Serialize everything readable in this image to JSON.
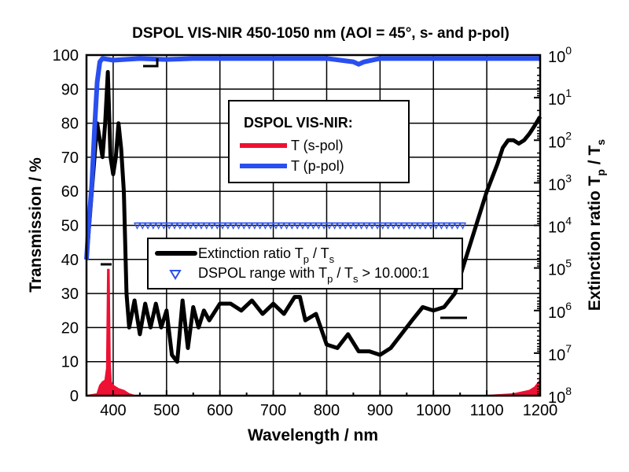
{
  "chart_data": {
    "type": "line",
    "title": "DSPOL VIS-NIR 450-1050 nm (AOI = 45°, s- and p-pol)",
    "xlabel": "Wavelength / nm",
    "ylabel": "Transmission / %",
    "y2label_main": "Extinction ratio T",
    "y2label_sub1": "p",
    "y2label_mid": " / T",
    "y2label_sub2": "s",
    "xlim": [
      350,
      1200
    ],
    "ylim": [
      0,
      100
    ],
    "y2lim": [
      1,
      100000000
    ],
    "y2scale": "log",
    "y2inverted": true,
    "grid": true,
    "x_ticks": [
      "400",
      "500",
      "600",
      "700",
      "800",
      "900",
      "1000",
      "1100",
      "1200"
    ],
    "y_ticks": [
      "0",
      "10",
      "20",
      "30",
      "40",
      "50",
      "60",
      "70",
      "80",
      "90",
      "100"
    ],
    "y2_ticks": [
      {
        "base": "10",
        "exp": "0"
      },
      {
        "base": "10",
        "exp": "1"
      },
      {
        "base": "10",
        "exp": "2"
      },
      {
        "base": "10",
        "exp": "3"
      },
      {
        "base": "10",
        "exp": "4"
      },
      {
        "base": "10",
        "exp": "5"
      },
      {
        "base": "10",
        "exp": "6"
      },
      {
        "base": "10",
        "exp": "7"
      },
      {
        "base": "10",
        "exp": "8"
      }
    ],
    "legend1": {
      "title": "DSPOL VIS-NIR:",
      "placement": "top-center",
      "entries": [
        "T (s-pol)",
        "T (p-pol)"
      ]
    },
    "legend2": {
      "placement": "center",
      "entry1_main": "Extinction ratio T",
      "entry1_sub1": "p",
      "entry1_mid": " / T",
      "entry1_sub2": "s",
      "entry2_main": "DSPOL range with T",
      "entry2_sub1": "p",
      "entry2_mid": " / T",
      "entry2_sub2": "s",
      "entry2_tail": " > 10.000:1"
    },
    "colors": {
      "s_pol": "#ee1133",
      "p_pol": "#2a4ff0",
      "extinction": "#000000",
      "range_marker": "#2a4ff0"
    },
    "series": [
      {
        "name": "T (s-pol)",
        "axis": "left",
        "x": [
          350,
          370,
          375,
          380,
          385,
          388,
          390,
          392,
          394,
          396,
          400,
          405,
          410,
          420,
          430,
          440,
          600,
          800,
          1000,
          1100,
          1150,
          1180,
          1190,
          1200
        ],
        "y": [
          0,
          0.5,
          3,
          4,
          4.5,
          8,
          37,
          37,
          10,
          4,
          3,
          2.5,
          2,
          1.5,
          0.5,
          0,
          0,
          0,
          0,
          0,
          0.5,
          1.5,
          2.5,
          4.5
        ]
      },
      {
        "name": "T (p-pol)",
        "axis": "left",
        "x": [
          350,
          355,
          360,
          365,
          370,
          375,
          380,
          400,
          450,
          500,
          550,
          600,
          700,
          800,
          850,
          860,
          870,
          900,
          1000,
          1100,
          1200
        ],
        "y": [
          40,
          52,
          62,
          78,
          92,
          98,
          99,
          98.5,
          99,
          98.7,
          99,
          99,
          99,
          99,
          98,
          97.3,
          98,
          99,
          99,
          99,
          99
        ]
      },
      {
        "name": "Extinction ratio Tp / Ts",
        "axis": "right",
        "x": [
          350,
          360,
          370,
          375,
          380,
          385,
          390,
          395,
          400,
          405,
          410,
          415,
          420,
          425,
          430,
          440,
          450,
          460,
          470,
          480,
          490,
          500,
          510,
          520,
          530,
          540,
          550,
          560,
          570,
          580,
          600,
          620,
          640,
          660,
          680,
          700,
          720,
          740,
          750,
          760,
          780,
          800,
          820,
          840,
          860,
          880,
          900,
          920,
          940,
          960,
          980,
          1000,
          1020,
          1040,
          1060,
          1080,
          1100,
          1120,
          1130,
          1140,
          1150,
          1160,
          1170,
          1180,
          1190,
          1200
        ],
        "y": [
          63000,
          1600,
          40,
          100,
          250,
          40,
          2.5,
          250,
          630,
          250,
          40,
          160,
          1600,
          400000,
          2500000,
          580000,
          3600000,
          690000,
          2500000,
          690000,
          2500000,
          1000000,
          11000000,
          16000000,
          580000,
          7600000,
          830000,
          2500000,
          1000000,
          1700000,
          690000,
          690000,
          1000000,
          580000,
          1200000,
          690000,
          1200000,
          480000,
          480000,
          1700000,
          1200000,
          6300000,
          7600000,
          3600000,
          9100000,
          9100000,
          11000000,
          7600000,
          3600000,
          1700000,
          830000,
          1000000,
          830000,
          400000,
          63000,
          10000,
          1600,
          360,
          150,
          100,
          100,
          120,
          100,
          70,
          45,
          28
        ]
      },
      {
        "name": "DSPOL range with Tp / Ts > 10.000:1",
        "axis": "right",
        "marker": "triangle-down",
        "x_start": 445,
        "x_end": 1055,
        "x_step": 10,
        "y": 10000
      }
    ]
  }
}
